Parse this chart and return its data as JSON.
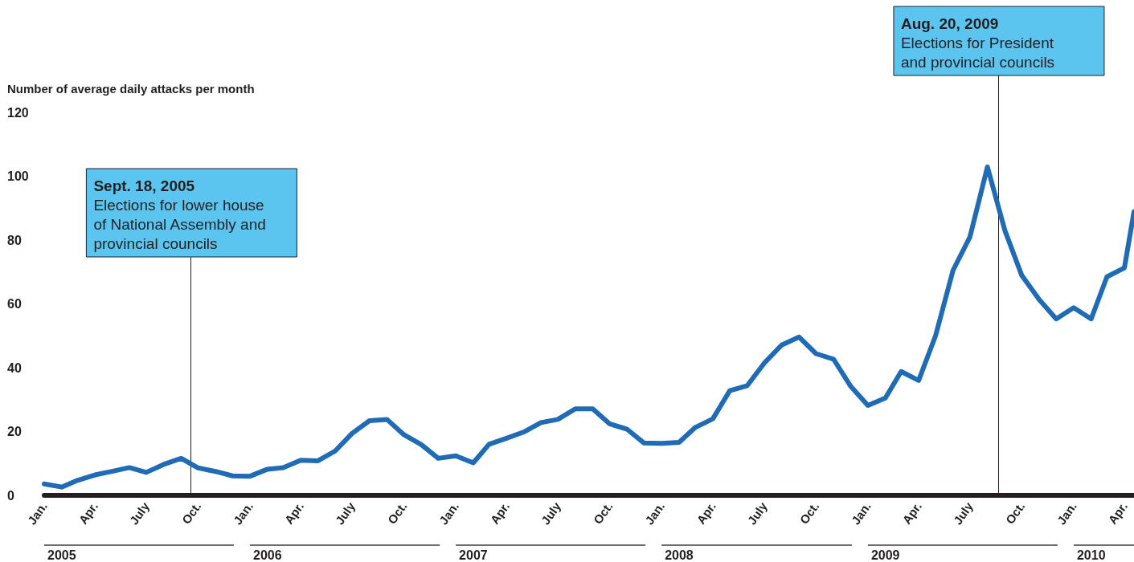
{
  "chart_data": {
    "type": "line",
    "ylabel": "Number of average daily attacks per month",
    "x": [
      "2005-01",
      "2005-02",
      "2005-03",
      "2005-04",
      "2005-05",
      "2005-06",
      "2005-07",
      "2005-08",
      "2005-09",
      "2005-10",
      "2005-11",
      "2005-12",
      "2006-01",
      "2006-02",
      "2006-03",
      "2006-04",
      "2006-05",
      "2006-06",
      "2006-07",
      "2006-08",
      "2006-09",
      "2006-10",
      "2006-11",
      "2006-12",
      "2007-01",
      "2007-02",
      "2007-03",
      "2007-04",
      "2007-05",
      "2007-06",
      "2007-07",
      "2007-08",
      "2007-09",
      "2007-10",
      "2007-11",
      "2007-12",
      "2008-01",
      "2008-02",
      "2008-03",
      "2008-04",
      "2008-05",
      "2008-06",
      "2008-07",
      "2008-08",
      "2008-09",
      "2008-10",
      "2008-11",
      "2008-12",
      "2009-01",
      "2009-02",
      "2009-03",
      "2009-04",
      "2009-05",
      "2009-06",
      "2009-07",
      "2009-08",
      "2009-09",
      "2009-10",
      "2009-11",
      "2009-12",
      "2010-01",
      "2010-02",
      "2010-03",
      "2010-04",
      "2010-04-18"
    ],
    "series": [
      {
        "color": "#1f6bb5",
        "values": [
          3.6,
          2.6,
          4.7,
          6.4,
          7.5,
          8.7,
          7.2,
          9.7,
          11.6,
          8.6,
          7.5,
          6.1,
          6,
          8.2,
          8.7,
          11,
          10.8,
          13.9,
          19.4,
          23.4,
          23.8,
          19,
          15.9,
          11.6,
          12.4,
          10.2,
          16,
          17.9,
          19.8,
          22.8,
          23.8,
          27.1,
          27.1,
          22.4,
          20.7,
          16.4,
          16.3,
          16.6,
          21.3,
          24,
          32.8,
          34.4,
          41.4,
          47.1,
          49.6,
          44.4,
          42.7,
          34.3,
          28.2,
          30.5,
          38.8,
          36,
          50,
          70.5,
          81,
          102.9,
          83,
          68.9,
          61.3,
          55.3,
          58.8,
          55.3,
          68.5,
          71.3,
          88.9
        ]
      }
    ],
    "xlim": [
      "2005-01",
      "2010-04-18"
    ],
    "xticks": [
      {
        "value": "2005-01",
        "label": "Jan."
      },
      {
        "value": "2005-04",
        "label": "Apr."
      },
      {
        "value": "2005-07",
        "label": "July"
      },
      {
        "value": "2005-10",
        "label": "Oct."
      },
      {
        "value": "2006-01",
        "label": "Jan."
      },
      {
        "value": "2006-04",
        "label": "Apr."
      },
      {
        "value": "2006-07",
        "label": "July"
      },
      {
        "value": "2006-10",
        "label": "Oct."
      },
      {
        "value": "2007-01",
        "label": "Jan."
      },
      {
        "value": "2007-04",
        "label": "Apr."
      },
      {
        "value": "2007-07",
        "label": "July"
      },
      {
        "value": "2007-10",
        "label": "Oct."
      },
      {
        "value": "2008-01",
        "label": "Jan."
      },
      {
        "value": "2008-04",
        "label": "Apr."
      },
      {
        "value": "2008-07",
        "label": "July"
      },
      {
        "value": "2008-10",
        "label": "Oct."
      },
      {
        "value": "2009-01",
        "label": "Jan."
      },
      {
        "value": "2009-04",
        "label": "Apr."
      },
      {
        "value": "2009-07",
        "label": "July"
      },
      {
        "value": "2009-10",
        "label": "Oct."
      },
      {
        "value": "2010-01",
        "label": "Jan."
      },
      {
        "value": "2010-04",
        "label": "Apr."
      }
    ],
    "ylim": [
      0,
      120
    ],
    "yticks": [
      0,
      20,
      40,
      60,
      80,
      100,
      120
    ],
    "grid": false,
    "marker": "none",
    "line_style": "solid",
    "ref_lines": [
      {
        "axis": "x",
        "value": "2005-09-18",
        "color": "#231f20",
        "label": "Sept. 18, 2005\nElections for lower house\nof National Assembly and\nprovincial councils"
      },
      {
        "axis": "x",
        "value": "2009-08-20",
        "color": "#231f20",
        "label": "Aug. 20, 2009\nElections for President\nand provincial councils"
      }
    ],
    "annotations": [
      "2005",
      "2006",
      "2007",
      "2008",
      "2009",
      "2010"
    ]
  }
}
